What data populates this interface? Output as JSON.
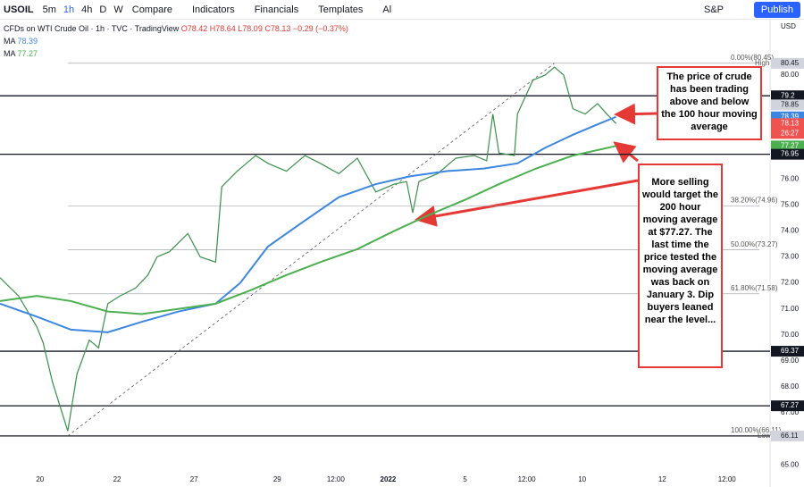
{
  "toolbar": {
    "symbol": "USOIL",
    "intervals": [
      "5m",
      "1h",
      "4h",
      "D",
      "W"
    ],
    "buttons": [
      "Compare",
      "Indicators",
      "Financials",
      "Templates",
      "Al"
    ],
    "index": "S&P",
    "publish": "Publish"
  },
  "legend": {
    "title": "CFDs on WTI Crude Oil · 1h · TVC · TradingView",
    "ohlc": "O78.42 H78.64 L78.09 C78.13 −0.29 (−0.37%)",
    "ma_label": "MA",
    "ma_values": [
      78.39,
      77.27
    ]
  },
  "chart_data": {
    "type": "line",
    "currency": "USD",
    "xlim": [
      0,
      250
    ],
    "ylim": [
      64.73,
      82.13
    ],
    "xticks": [
      {
        "value": 13,
        "label": "20"
      },
      {
        "value": 38,
        "label": "22"
      },
      {
        "value": 63,
        "label": "27"
      },
      {
        "value": 90,
        "label": "29"
      },
      {
        "value": 109,
        "label": "12:00"
      },
      {
        "value": 126,
        "label": "2022"
      },
      {
        "value": 151,
        "label": "5"
      },
      {
        "value": 171,
        "label": "12:00"
      },
      {
        "value": 189,
        "label": "10"
      },
      {
        "value": 215,
        "label": "12"
      },
      {
        "value": 236,
        "label": "12:00"
      }
    ],
    "yticks": [
      {
        "value": 65,
        "label": "65.00"
      },
      {
        "value": 66,
        "label": "66.00"
      },
      {
        "value": 67,
        "label": "67.00"
      },
      {
        "value": 68,
        "label": "68.00"
      },
      {
        "value": 69,
        "label": "69.00"
      },
      {
        "value": 70,
        "label": "70.00"
      },
      {
        "value": 71,
        "label": "71.00"
      },
      {
        "value": 72,
        "label": "72.00"
      },
      {
        "value": 73,
        "label": "73.00"
      },
      {
        "value": 74,
        "label": "74.00"
      },
      {
        "value": 75,
        "label": "75.00"
      },
      {
        "value": 76,
        "label": "76.00"
      },
      {
        "value": 77,
        "label": "77.00"
      },
      {
        "value": 78,
        "label": "78.00"
      },
      {
        "value": 79,
        "label": "79.00"
      },
      {
        "value": 80,
        "label": "80.00"
      }
    ],
    "series": [
      {
        "color": "#3a8f4a",
        "x": [
          0,
          6,
          12,
          14,
          17,
          22,
          25,
          29,
          32,
          35,
          39,
          44,
          48,
          51,
          55,
          61,
          65,
          70,
          72,
          77,
          83,
          87,
          93,
          99,
          104,
          110,
          116,
          122,
          128,
          132,
          134,
          136,
          142,
          148,
          154,
          158,
          160,
          162,
          167,
          168,
          173,
          177,
          180,
          183,
          186,
          190,
          194,
          197,
          200
        ],
        "values": [
          72.2,
          71.5,
          70.3,
          69.7,
          68.2,
          66.3,
          68.5,
          69.8,
          69.5,
          71.2,
          71.5,
          71.8,
          72.3,
          73.0,
          73.2,
          73.9,
          73.0,
          72.8,
          75.7,
          76.3,
          76.9,
          76.6,
          76.3,
          76.9,
          76.6,
          76.2,
          76.8,
          75.5,
          75.8,
          75.9,
          74.7,
          75.9,
          76.2,
          76.8,
          76.9,
          76.7,
          78.5,
          77.0,
          76.9,
          78.5,
          79.8,
          80.0,
          80.3,
          80.0,
          78.7,
          78.5,
          78.9,
          78.5,
          78.13
        ]
      },
      {
        "color": "#3d86e0",
        "x": [
          0,
          12,
          23,
          35,
          46,
          58,
          70,
          78,
          87,
          99,
          110,
          122,
          133,
          145,
          157,
          168,
          177,
          186,
          194,
          200
        ],
        "values": [
          71.2,
          70.7,
          70.2,
          70.1,
          70.5,
          70.9,
          71.2,
          72.0,
          73.4,
          74.4,
          75.3,
          75.8,
          76.1,
          76.3,
          76.4,
          76.6,
          77.2,
          77.7,
          78.1,
          78.39
        ]
      },
      {
        "color": "#4caf50",
        "x": [
          0,
          12,
          23,
          35,
          46,
          58,
          70,
          81,
          93,
          104,
          116,
          128,
          139,
          151,
          162,
          174,
          186,
          200
        ],
        "values": [
          71.3,
          71.5,
          71.3,
          70.9,
          70.8,
          71.0,
          71.2,
          71.7,
          72.3,
          72.8,
          73.3,
          74.0,
          74.6,
          75.2,
          75.8,
          76.4,
          76.9,
          77.27
        ]
      }
    ],
    "hlines": [
      79.2,
      76.95,
      69.37,
      67.27,
      66.11
    ],
    "fib_levels": [
      {
        "value": 80.45,
        "label": "0.00%(80.45)"
      },
      {
        "value": 74.96,
        "label": "38.20%(74.96)"
      },
      {
        "value": 73.27,
        "label": "50.00%(73.27)"
      },
      {
        "value": 71.58,
        "label": "61.80%(71.58)"
      },
      {
        "value": 66.11,
        "label": "100.00%(66.11)"
      }
    ],
    "trend": {
      "x": [
        22,
        180
      ],
      "values": [
        66.11,
        80.45
      ]
    },
    "high_label": "High",
    "low_label": "Low",
    "price_labels": [
      {
        "value": 80.45,
        "color": "#d1d4dc"
      },
      {
        "value": 79.2,
        "color": "#131722"
      },
      {
        "value": 78.85,
        "color": "#d1d4dc"
      },
      {
        "value": 78.39,
        "color": "#3d86e0"
      },
      {
        "value": 78.13,
        "color": "#ef5350"
      },
      {
        "value": 77.27,
        "color": "#4caf50"
      },
      {
        "value": 76.95,
        "color": "#131722"
      },
      {
        "value": 69.37,
        "color": "#131722"
      },
      {
        "value": 67.27,
        "color": "#131722"
      },
      {
        "value": 66.11,
        "color": "#d1d4dc"
      }
    ],
    "countdown": "26:27"
  },
  "annotations": [
    "The price of crude has been trading above and below the 100 hour moving average",
    "More selling would target the 200 hour moving average at $77.27. The last time the price tested the moving average was back on January 3. Dip buyers leaned near the level..."
  ]
}
